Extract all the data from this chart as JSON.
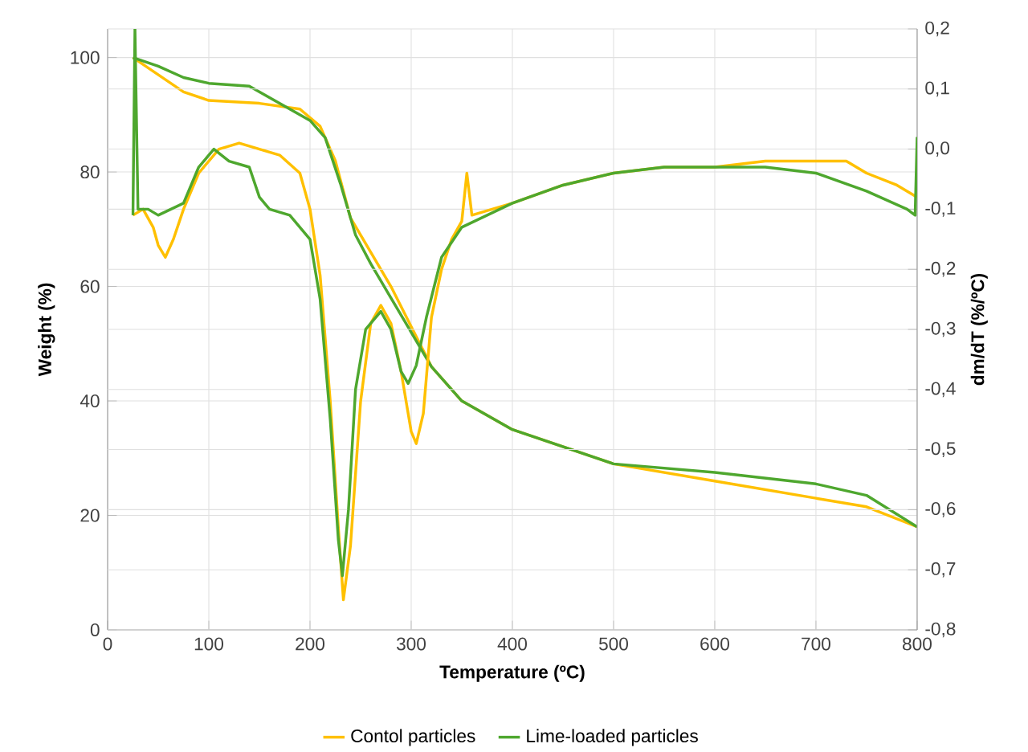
{
  "chart_data": {
    "type": "line",
    "xlabel": "Temperature (ºC)",
    "ylabel": "Weight (%)",
    "y2label": "dm/dT (%/ºC)",
    "xlim": [
      0,
      800
    ],
    "xticks": [
      0,
      100,
      200,
      300,
      400,
      500,
      600,
      700,
      800
    ],
    "ylim": [
      0,
      105
    ],
    "yticks": [
      0,
      20,
      40,
      60,
      80,
      100
    ],
    "y2lim": [
      -0.8,
      0.2
    ],
    "y2ticks": [
      {
        "value": -0.8,
        "label": "-0,8"
      },
      {
        "value": -0.7,
        "label": "-0,7"
      },
      {
        "value": -0.6,
        "label": "-0,6"
      },
      {
        "value": -0.5,
        "label": "-0,5"
      },
      {
        "value": -0.4,
        "label": "-0,4"
      },
      {
        "value": -0.3,
        "label": "-0,3"
      },
      {
        "value": -0.2,
        "label": "-0,2"
      },
      {
        "value": -0.1,
        "label": "-0,1"
      },
      {
        "value": 0,
        "label": "0,0"
      },
      {
        "value": 0.1,
        "label": "0,1"
      },
      {
        "value": 0.2,
        "label": "0,2"
      }
    ],
    "grid": true,
    "legend": "bottom",
    "series": [
      {
        "name": "Contol particles",
        "color": "#ffc000",
        "x": [
          25,
          50,
          75,
          100,
          150,
          190,
          210,
          225,
          240,
          260,
          280,
          300,
          320,
          350,
          400,
          500,
          600,
          700,
          750,
          800
        ],
        "values": [
          100,
          97,
          94,
          92.5,
          92,
          91,
          88,
          82,
          72,
          66,
          60,
          53,
          46,
          40,
          35,
          29,
          26,
          23,
          21.5,
          18
        ]
      },
      {
        "name": "Lime-loaded particles",
        "color": "#4ea72e",
        "x": [
          25,
          50,
          75,
          100,
          140,
          170,
          200,
          215,
          230,
          245,
          260,
          280,
          300,
          320,
          350,
          400,
          500,
          600,
          700,
          750,
          800
        ],
        "values": [
          100,
          98.5,
          96.5,
          95.5,
          95,
          92,
          89,
          86,
          78,
          69,
          64,
          58,
          52,
          46,
          40,
          35,
          29,
          27.5,
          25.5,
          23.5,
          18
        ]
      },
      {
        "axis": "y2",
        "color": "#ffc000",
        "x": [
          25,
          35,
          45,
          50,
          57,
          65,
          75,
          90,
          110,
          130,
          150,
          170,
          190,
          200,
          210,
          220,
          228,
          233,
          240,
          250,
          260,
          270,
          280,
          290,
          300,
          305,
          312,
          320,
          330,
          340,
          350,
          355,
          360,
          400,
          450,
          500,
          550,
          600,
          650,
          700,
          730,
          750,
          780,
          800
        ],
        "values": [
          -0.11,
          -0.1,
          -0.13,
          -0.16,
          -0.18,
          -0.15,
          -0.1,
          -0.04,
          0.0,
          0.01,
          0.0,
          -0.01,
          -0.04,
          -0.1,
          -0.21,
          -0.42,
          -0.63,
          -0.75,
          -0.66,
          -0.42,
          -0.29,
          -0.26,
          -0.29,
          -0.37,
          -0.47,
          -0.49,
          -0.44,
          -0.28,
          -0.2,
          -0.15,
          -0.12,
          -0.04,
          -0.11,
          -0.09,
          -0.06,
          -0.04,
          -0.03,
          -0.03,
          -0.02,
          -0.02,
          -0.02,
          -0.04,
          -0.06,
          -0.08
        ]
      },
      {
        "axis": "y2",
        "color": "#4ea72e",
        "x": [
          25,
          27,
          30,
          40,
          50,
          75,
          90,
          105,
          120,
          140,
          150,
          160,
          180,
          200,
          210,
          220,
          228,
          232,
          238,
          245,
          255,
          270,
          280,
          290,
          297,
          305,
          315,
          330,
          350,
          400,
          450,
          500,
          550,
          600,
          650,
          700,
          750,
          790,
          798,
          800
        ],
        "values": [
          -0.11,
          0.2,
          -0.1,
          -0.1,
          -0.11,
          -0.09,
          -0.03,
          0.0,
          -0.02,
          -0.03,
          -0.08,
          -0.1,
          -0.11,
          -0.15,
          -0.25,
          -0.45,
          -0.65,
          -0.71,
          -0.6,
          -0.4,
          -0.3,
          -0.27,
          -0.3,
          -0.37,
          -0.39,
          -0.36,
          -0.28,
          -0.18,
          -0.13,
          -0.09,
          -0.06,
          -0.04,
          -0.03,
          -0.03,
          -0.03,
          -0.04,
          -0.07,
          -0.1,
          -0.11,
          0.02
        ]
      }
    ]
  }
}
